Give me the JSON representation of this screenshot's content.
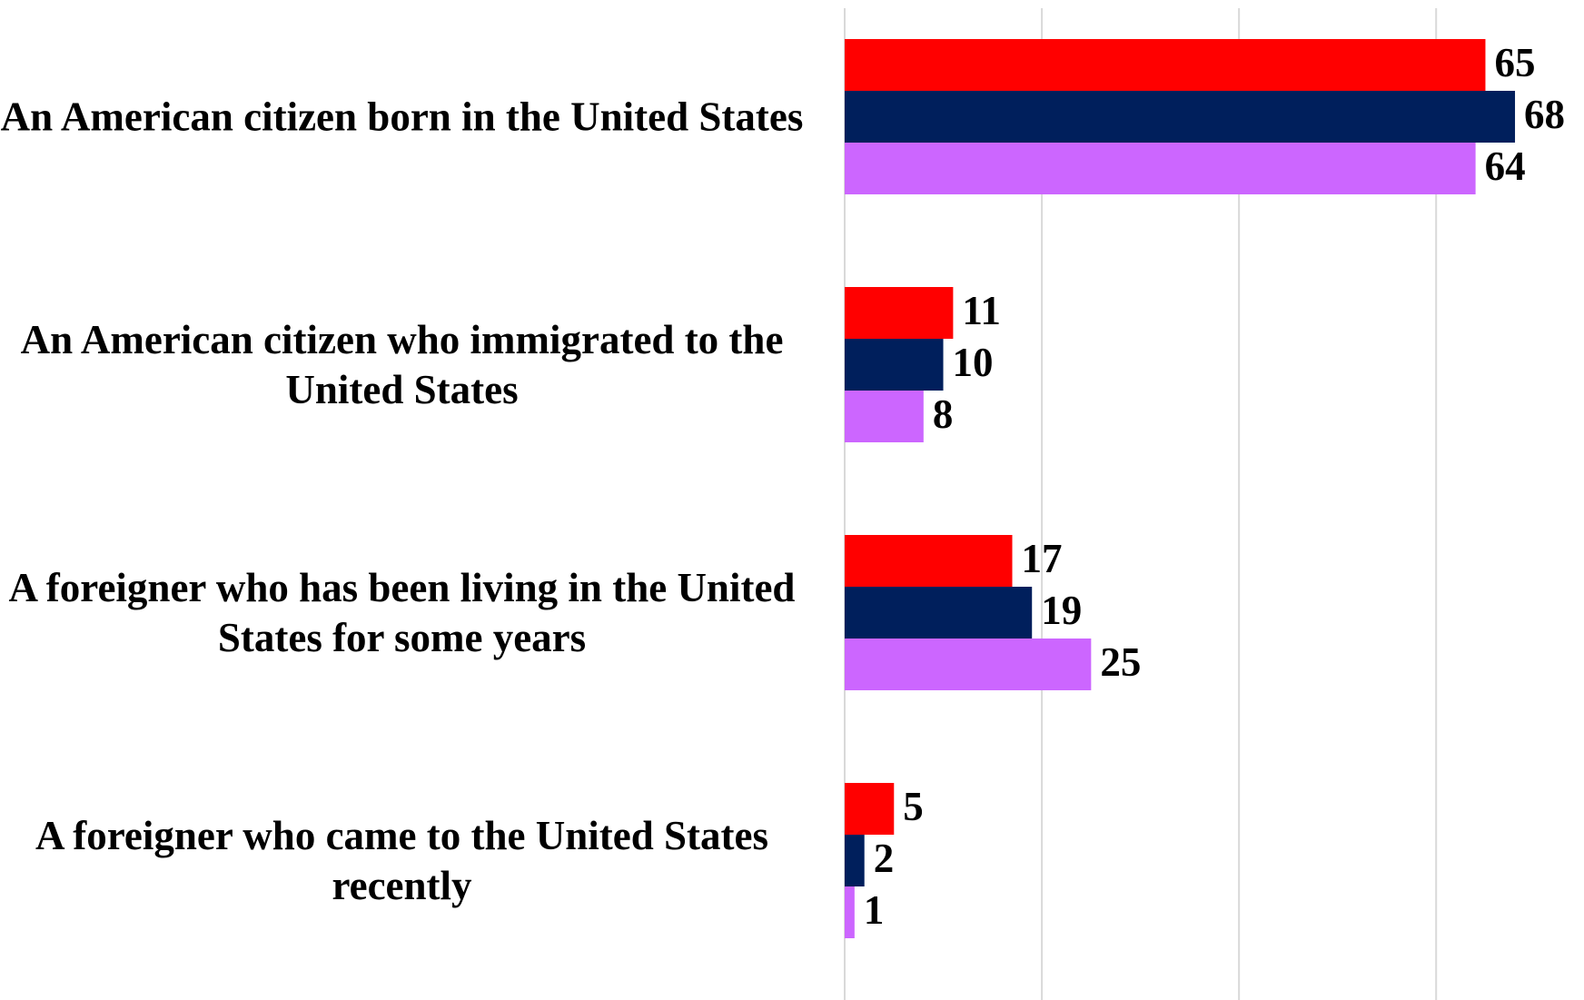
{
  "chart_data": {
    "type": "barh",
    "categories": [
      "An American citizen born in the United States",
      "An American citizen who immigrated to the United States",
      "A foreigner who has been living in the United States for some years",
      "A foreigner who came to the United States recently"
    ],
    "series": [
      {
        "color": "#ff0000",
        "values": [
          65,
          11,
          17,
          5
        ]
      },
      {
        "color": "#001f5c",
        "values": [
          68,
          10,
          19,
          2
        ]
      },
      {
        "color": "#cc66ff",
        "values": [
          64,
          8,
          25,
          1
        ]
      }
    ],
    "xlim": [
      0,
      75
    ],
    "xticks": [
      0,
      20,
      40,
      60
    ],
    "grid": true
  }
}
